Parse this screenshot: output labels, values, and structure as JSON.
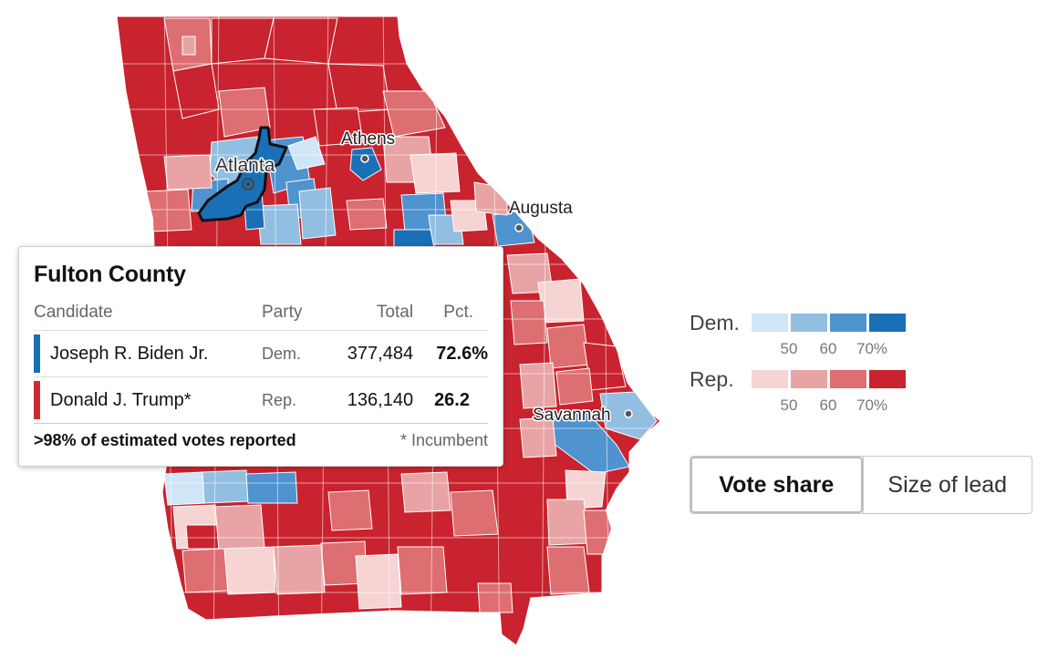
{
  "map": {
    "colors": {
      "dem": [
        "#cfe6f8",
        "#92bfe1",
        "#4f93cf",
        "#1a70b6"
      ],
      "rep": [
        "#f6d4d4",
        "#e8a4a4",
        "#dd6e72",
        "#c8232e"
      ]
    },
    "cities": [
      {
        "name": "Athens"
      },
      {
        "name": "Atlanta"
      },
      {
        "name": "Augusta"
      },
      {
        "name": "Savannah"
      }
    ],
    "highlighted_county": "Fulton County"
  },
  "tooltip": {
    "title": "Fulton County",
    "headers": {
      "candidate": "Candidate",
      "party": "Party",
      "total": "Total",
      "pct": "Pct."
    },
    "rows": [
      {
        "candidate": "Joseph R. Biden Jr.",
        "party": "Dem.",
        "total": "377,484",
        "pct": "72.6%",
        "color": "#1a6fb0"
      },
      {
        "candidate": "Donald J. Trump*",
        "party": "Rep.",
        "total": "136,140",
        "pct": "26.2",
        "color": "#cc2b36"
      }
    ],
    "reporting": ">98% of estimated votes reported",
    "incumbent_note": "* Incumbent"
  },
  "legend": {
    "dem_label": "Dem.",
    "rep_label": "Rep.",
    "ticks": [
      "50",
      "60",
      "70%"
    ]
  },
  "toggle": {
    "vote_share": "Vote share",
    "size_of_lead": "Size of lead",
    "active": "vote_share"
  }
}
